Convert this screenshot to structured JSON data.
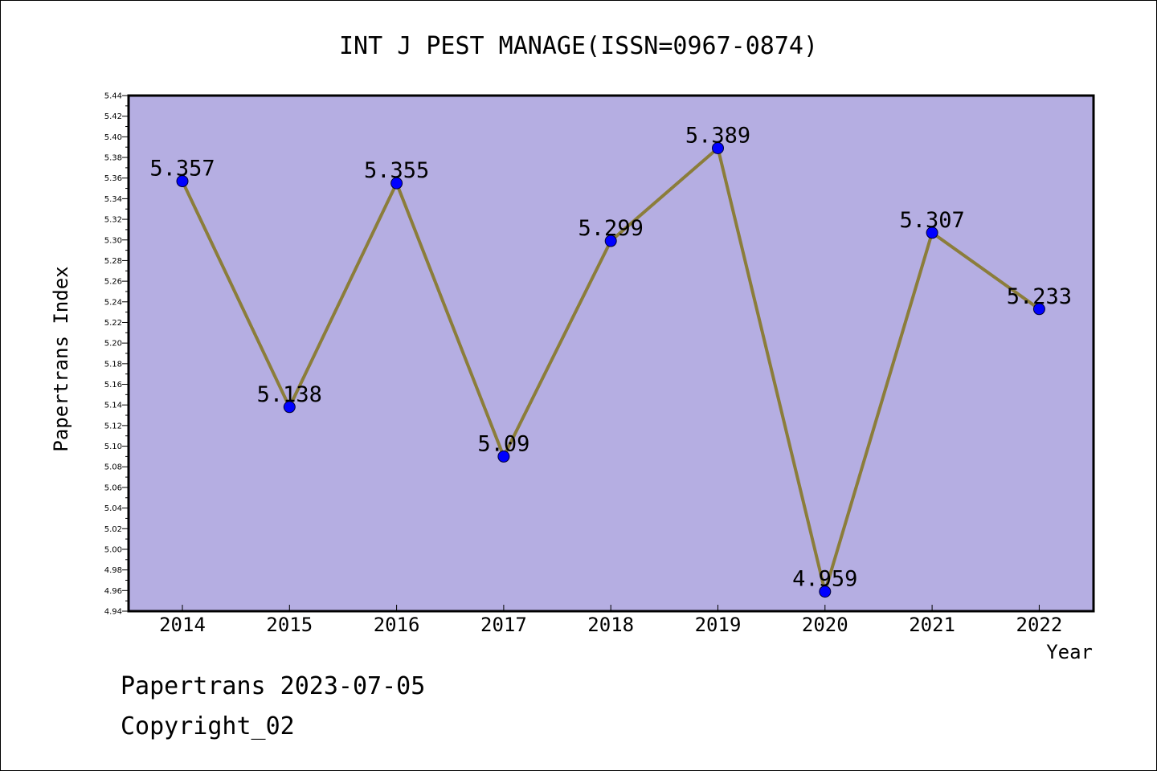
{
  "chart_data": {
    "type": "line",
    "title": "INT J PEST MANAGE(ISSN=0967-0874)",
    "xlabel": "Year",
    "ylabel": "Papertrans Index",
    "categories": [
      "2014",
      "2015",
      "2016",
      "2017",
      "2018",
      "2019",
      "2020",
      "2021",
      "2022"
    ],
    "series": [
      {
        "values": [
          5.357,
          5.138,
          5.355,
          5.09,
          5.299,
          5.389,
          4.959,
          5.307,
          5.233
        ]
      }
    ],
    "data_labels": [
      "5.357",
      "5.138",
      "5.355",
      "5.09",
      "5.299",
      "5.389",
      "4.959",
      "5.307",
      "5.233"
    ],
    "ylim": [
      4.94,
      5.44
    ],
    "y_ticks": [
      "4.94",
      "4.96",
      "4.98",
      "5.00",
      "5.02",
      "5.04",
      "5.06",
      "5.08",
      "5.10",
      "5.12",
      "5.14",
      "5.16",
      "5.18",
      "5.20",
      "5.22",
      "5.24",
      "5.26",
      "5.28",
      "5.30",
      "5.32",
      "5.34",
      "5.36",
      "5.38",
      "5.40",
      "5.42",
      "5.44"
    ],
    "grid": false,
    "colors": {
      "plot_background": "#b5aee2",
      "line": "#8b7d3a",
      "marker": "#0000ff"
    }
  },
  "footer": {
    "line1": "Papertrans 2023-07-05",
    "line2": "Copyright_02"
  }
}
